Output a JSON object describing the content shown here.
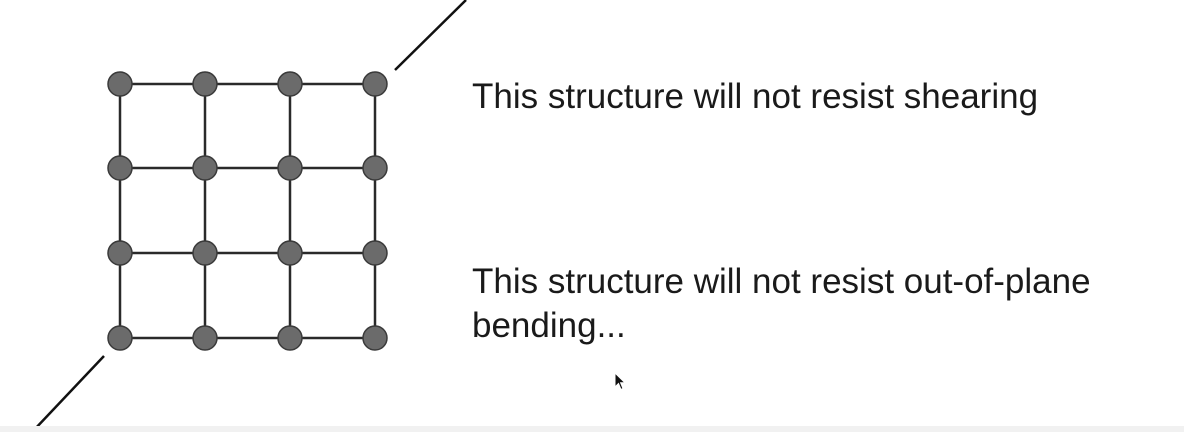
{
  "captions": {
    "shear": "This structure will not resist shearing",
    "bending_line1": "This structure will not resist out-of-plane",
    "bending_line2": "bending..."
  },
  "lattice": {
    "rows": 4,
    "columns": 4,
    "node_color": "#6b6b6b",
    "node_stroke": "#3a3a3a",
    "bar_color": "#2a2a2a"
  },
  "colors": {
    "background": "#ffffff",
    "text": "#1a1a1a",
    "diagonal": "#111111"
  },
  "icons": {
    "pointer": "mouse-pointer-icon"
  }
}
